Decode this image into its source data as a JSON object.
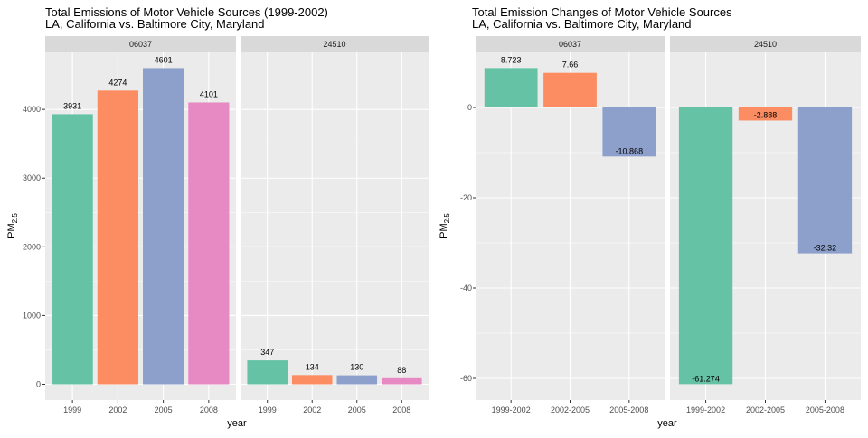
{
  "chart_data": [
    {
      "type": "bar",
      "title": "Total Emissions of Motor Vehicle Sources (1999-2002)",
      "subtitle": "LA, California vs. Baltimore City, Maryland",
      "xlabel": "year",
      "ylabel_main": "PM",
      "ylabel_sub": "2.5",
      "ylim": [
        -230,
        4830
      ],
      "yticks": [
        0,
        1000,
        2000,
        3000,
        4000
      ],
      "colors": [
        "#66c2a5",
        "#fc8d62",
        "#8da0cb",
        "#e78ac3"
      ],
      "facets": [
        {
          "label": "06037",
          "categories": [
            "1999",
            "2002",
            "2005",
            "2008"
          ],
          "values": [
            3931,
            4274,
            4601,
            4101
          ],
          "labels": [
            "3931",
            "4274",
            "4601",
            "4101"
          ]
        },
        {
          "label": "24510",
          "categories": [
            "1999",
            "2002",
            "2005",
            "2008"
          ],
          "values": [
            347,
            134,
            130,
            88
          ],
          "labels": [
            "347",
            "134",
            "130",
            "88"
          ]
        }
      ]
    },
    {
      "type": "bar",
      "title": "Total Emission Changes of Motor Vehicle Sources",
      "subtitle": "LA, California vs. Baltimore City, Maryland",
      "xlabel": "year",
      "ylabel_main": "PM",
      "ylabel_sub": "2.5",
      "ylim": [
        -64.8,
        12.2
      ],
      "yticks": [
        -60,
        -40,
        -20,
        0
      ],
      "colors": [
        "#66c2a5",
        "#fc8d62",
        "#8da0cb"
      ],
      "facets": [
        {
          "label": "06037",
          "categories": [
            "1999-2002",
            "2002-2005",
            "2005-2008"
          ],
          "values": [
            8.723,
            7.66,
            -10.868
          ],
          "labels": [
            "8.723",
            "7.66",
            "-10.868"
          ]
        },
        {
          "label": "24510",
          "categories": [
            "1999-2002",
            "2002-2005",
            "2005-2008"
          ],
          "values": [
            -61.274,
            -2.888,
            -32.32
          ],
          "labels": [
            "-61.274",
            "-2.888",
            "-32.32"
          ]
        }
      ]
    }
  ]
}
